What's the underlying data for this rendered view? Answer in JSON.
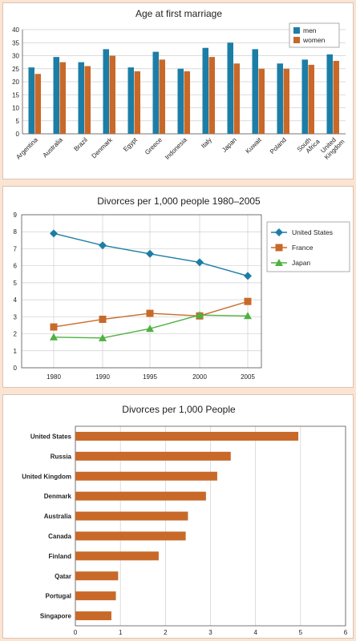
{
  "chart_data": [
    {
      "type": "bar",
      "title": "Age at first marriage",
      "categories": [
        "Argentina",
        "Australia",
        "Brazil",
        "Denmark",
        "Egypt",
        "Greece",
        "Indonesia",
        "Italy",
        "Japan",
        "Kuwait",
        "Poland",
        "South Africa",
        "United Kingdom"
      ],
      "series": [
        {
          "name": "men",
          "values": [
            25.5,
            29.5,
            27.5,
            32.5,
            25.5,
            31.5,
            25,
            33,
            35,
            32.5,
            27,
            28.5,
            30.5
          ],
          "color": "#1c7ea6"
        },
        {
          "name": "women",
          "values": [
            23,
            27.5,
            26,
            30,
            24,
            28.5,
            24,
            29.5,
            27,
            25,
            25,
            26.5,
            28
          ],
          "color": "#c8692a"
        }
      ],
      "ylim": [
        0,
        40
      ],
      "yticks": [
        0,
        5,
        10,
        15,
        20,
        25,
        30,
        35,
        40
      ],
      "grid": true,
      "legend": "top-right"
    },
    {
      "type": "line",
      "title": "Divorces per 1,000 people 1980–2005",
      "x": [
        "1980",
        "1990",
        "1995",
        "2000",
        "2005"
      ],
      "series": [
        {
          "name": "United States",
          "values": [
            7.9,
            7.2,
            6.7,
            6.2,
            5.4
          ],
          "color": "#1c7ea6",
          "marker": "diamond"
        },
        {
          "name": "France",
          "values": [
            2.4,
            2.85,
            3.2,
            3.05,
            3.9
          ],
          "color": "#c8692a",
          "marker": "square"
        },
        {
          "name": "Japan",
          "values": [
            1.8,
            1.75,
            2.3,
            3.1,
            3.05
          ],
          "color": "#4fb141",
          "marker": "triangle"
        }
      ],
      "ylim": [
        0,
        9
      ],
      "yticks": [
        0,
        1,
        2,
        3,
        4,
        5,
        6,
        7,
        8,
        9
      ],
      "grid": true,
      "legend": "top-right"
    },
    {
      "type": "bar",
      "orientation": "horizontal",
      "title": "Divorces per 1,000 People",
      "categories": [
        "United States",
        "Russia",
        "United Kingdom",
        "Denmark",
        "Australia",
        "Canada",
        "Finland",
        "Qatar",
        "Portugal",
        "Singapore"
      ],
      "values": [
        4.95,
        3.45,
        3.15,
        2.9,
        2.5,
        2.45,
        1.85,
        0.95,
        0.9,
        0.8
      ],
      "color": "#c8692a",
      "xlim": [
        0,
        6
      ],
      "xticks": [
        0,
        1,
        2,
        3,
        4,
        5,
        6
      ],
      "grid": true
    }
  ]
}
